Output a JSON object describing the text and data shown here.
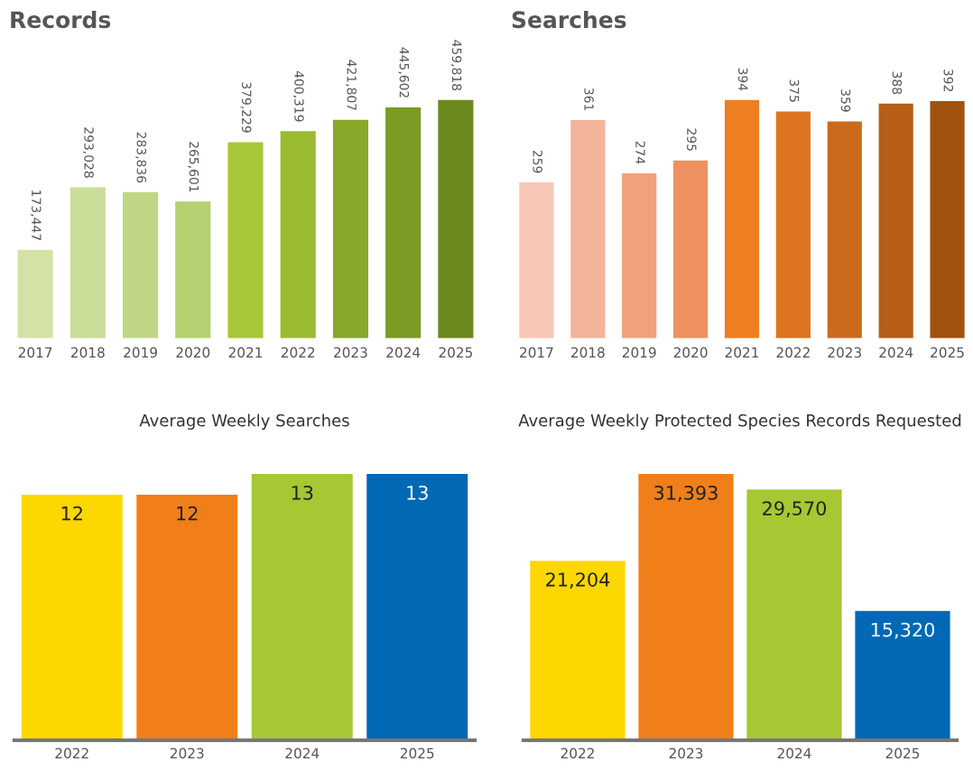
{
  "chart_data": [
    {
      "type": "bar",
      "title": "Records",
      "categories": [
        "2017",
        "2018",
        "2019",
        "2020",
        "2021",
        "2022",
        "2023",
        "2024",
        "2025"
      ],
      "values": [
        173447,
        293028,
        283836,
        265601,
        379229,
        400319,
        421807,
        445602,
        459818
      ],
      "colors": [
        "#d3e3a8",
        "#c9dd98",
        "#bfd785",
        "#b3d170",
        "#a8c83a",
        "#9abb30",
        "#88a82a",
        "#7a9a24",
        "#6b8a1e"
      ],
      "value_labels": [
        "173,447",
        "293,028",
        "283,836",
        "265,601",
        "379,229",
        "400,319",
        "421,807",
        "445,602",
        "459,818"
      ]
    },
    {
      "type": "bar",
      "title": "Searches",
      "categories": [
        "2017",
        "2018",
        "2019",
        "2020",
        "2021",
        "2022",
        "2023",
        "2024",
        "2025"
      ],
      "values": [
        259,
        361,
        274,
        295,
        394,
        375,
        359,
        388,
        392
      ],
      "colors": [
        "#f6c7b6",
        "#f2b49a",
        "#f0a27e",
        "#ee9160",
        "#ee7e22",
        "#dd7420",
        "#cc6a1c",
        "#b85e16",
        "#a2520f"
      ],
      "value_labels": [
        "259",
        "361",
        "274",
        "295",
        "394",
        "375",
        "359",
        "388",
        "392"
      ]
    },
    {
      "type": "bar",
      "title": "Average Weekly Searches",
      "categories": [
        "2022",
        "2023",
        "2024",
        "2025"
      ],
      "values": [
        12,
        12,
        13,
        13
      ],
      "colors": [
        "#fdd700",
        "#f07f1a",
        "#a6c832",
        "#0068b5"
      ],
      "data_labels": true
    },
    {
      "type": "bar",
      "title": "Average Weekly Protected Species Records Requested",
      "categories": [
        "2022",
        "2023",
        "2024",
        "2025"
      ],
      "values": [
        21204,
        31393,
        29570,
        15320
      ],
      "colors": [
        "#fdd700",
        "#f07f1a",
        "#a6c832",
        "#0068b5"
      ],
      "value_labels": [
        "21,204",
        "31,393",
        "29,570",
        "15,320"
      ]
    }
  ]
}
